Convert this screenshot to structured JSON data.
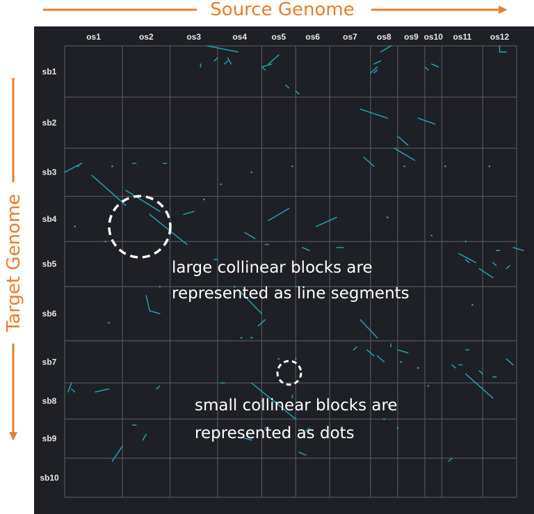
{
  "header": {
    "source_label": "Source Genome",
    "target_label": "Target Genome"
  },
  "colors": {
    "accent": "#E87D2A",
    "panel_bg": "#1f2025",
    "grid": "#54565b",
    "segment": "#1f9cb0",
    "label": "#e8e8e8",
    "annotation": "#ffffff"
  },
  "annotations": {
    "large": [
      "large collinear blocks are",
      "represented as line segments"
    ],
    "small": [
      "small collinear blocks are",
      "represented as dots"
    ]
  },
  "chart_data": {
    "type": "scatter",
    "grid": true,
    "x_axis": {
      "label": "Source Genome",
      "categories": [
        "os1",
        "os2",
        "os3",
        "os4",
        "os5",
        "os6",
        "os7",
        "os8",
        "os9",
        "os10",
        "os11",
        "os12"
      ],
      "sizes": [
        17,
        14,
        14,
        13,
        10,
        10,
        12,
        8,
        8,
        5,
        12,
        10
      ]
    },
    "y_axis": {
      "label": "Target Genome",
      "categories": [
        "sb1",
        "sb2",
        "sb3",
        "sb4",
        "sb5",
        "sb6",
        "sb7",
        "sb8",
        "sb9",
        "sb10"
      ],
      "sizes": [
        17,
        17,
        16,
        15,
        15,
        18,
        14,
        12,
        13,
        13
      ]
    },
    "segments": [
      [
        42,
        0,
        51,
        2
      ],
      [
        45,
        4,
        44,
        5
      ],
      [
        60,
        6,
        63,
        3
      ],
      [
        58,
        7,
        61,
        6
      ],
      [
        58,
        7,
        59,
        8
      ],
      [
        48,
        4,
        49,
        6
      ],
      [
        48,
        5,
        47,
        6
      ],
      [
        40,
        6,
        40,
        7
      ],
      [
        68,
        15,
        69,
        16
      ],
      [
        65,
        13,
        66,
        14
      ],
      [
        93,
        2,
        96,
        0
      ],
      [
        91,
        6,
        93,
        5
      ],
      [
        90,
        9,
        92,
        7
      ],
      [
        92,
        8,
        91,
        9
      ],
      [
        108,
        6,
        110,
        7
      ],
      [
        106,
        7,
        107,
        8
      ],
      [
        128,
        0,
        128,
        2
      ],
      [
        128,
        2,
        130,
        2
      ],
      [
        87,
        21,
        95,
        24
      ],
      [
        104,
        24,
        109,
        26
      ],
      [
        97,
        34,
        103,
        38
      ],
      [
        88,
        37,
        91,
        40
      ],
      [
        98,
        30,
        101,
        33
      ],
      [
        0,
        42,
        5,
        39
      ],
      [
        8,
        43,
        16,
        51
      ],
      [
        18,
        48,
        28,
        55
      ],
      [
        16,
        51,
        18,
        53
      ],
      [
        35,
        56,
        38,
        55
      ],
      [
        60,
        58,
        66,
        54
      ],
      [
        74,
        60,
        80,
        57
      ],
      [
        46,
        46,
        46,
        46
      ],
      [
        4,
        40,
        4,
        40
      ],
      [
        14,
        40,
        14,
        40
      ],
      [
        29,
        39,
        30,
        39
      ],
      [
        20,
        39,
        21,
        39
      ],
      [
        55,
        42,
        55,
        42
      ],
      [
        67,
        40,
        67,
        40
      ],
      [
        100,
        40,
        100,
        40
      ],
      [
        112,
        40,
        112,
        40
      ],
      [
        125,
        40,
        125,
        40
      ],
      [
        25,
        56,
        36,
        66
      ],
      [
        53,
        62,
        56,
        64
      ],
      [
        59,
        66,
        60,
        66
      ],
      [
        70,
        67,
        72,
        68
      ],
      [
        80,
        67,
        82,
        67
      ],
      [
        108,
        63,
        108,
        63
      ],
      [
        118,
        65,
        118,
        65
      ],
      [
        127,
        68,
        128,
        68
      ],
      [
        3,
        60,
        3,
        60
      ],
      [
        12,
        65,
        12,
        65
      ],
      [
        44,
        71,
        45,
        71
      ],
      [
        116,
        69,
        121,
        72
      ],
      [
        122,
        74,
        126,
        77
      ],
      [
        132,
        67,
        135,
        68
      ],
      [
        118,
        71,
        119,
        72
      ],
      [
        126,
        72,
        127,
        73
      ],
      [
        130,
        74,
        131,
        73
      ],
      [
        52,
        82,
        58,
        89
      ],
      [
        24,
        83,
        25,
        88
      ],
      [
        25,
        88,
        28,
        89
      ],
      [
        59,
        91,
        57,
        93
      ],
      [
        68,
        80,
        69,
        80
      ],
      [
        120,
        86,
        120,
        86
      ],
      [
        28,
        80,
        28,
        80
      ],
      [
        13,
        92,
        13,
        92
      ],
      [
        87,
        91,
        92,
        97
      ],
      [
        89,
        101,
        91,
        103
      ],
      [
        92,
        103,
        94,
        105
      ],
      [
        85,
        101,
        86,
        100
      ],
      [
        96,
        100,
        96,
        99
      ],
      [
        98,
        101,
        101,
        102
      ],
      [
        52,
        97,
        52,
        97
      ],
      [
        63,
        104,
        63,
        104
      ],
      [
        68,
        104,
        68,
        104
      ],
      [
        99,
        105,
        99,
        105
      ],
      [
        118,
        109,
        126,
        117
      ],
      [
        114,
        106,
        115,
        107
      ],
      [
        122,
        108,
        123,
        109
      ],
      [
        118,
        101,
        119,
        101
      ],
      [
        116,
        106,
        117,
        106
      ],
      [
        126,
        110,
        127,
        110
      ],
      [
        130,
        104,
        132,
        106
      ],
      [
        55,
        112,
        68,
        124
      ],
      [
        9,
        115,
        13,
        114
      ],
      [
        1,
        115,
        2,
        112
      ],
      [
        2,
        114,
        3,
        115
      ],
      [
        27,
        114,
        28,
        113
      ],
      [
        46,
        112,
        47,
        112
      ],
      [
        67,
        116,
        67,
        117
      ],
      [
        95,
        119,
        96,
        120
      ],
      [
        58,
        118,
        58,
        118
      ],
      [
        94,
        124,
        94,
        124
      ],
      [
        107,
        113,
        107,
        113
      ],
      [
        20,
        126,
        21,
        126
      ],
      [
        14,
        138,
        17,
        133
      ],
      [
        23,
        131,
        24,
        129
      ],
      [
        52,
        130,
        55,
        131
      ],
      [
        59,
        127,
        60,
        127
      ],
      [
        69,
        135,
        71,
        136
      ],
      [
        71,
        128,
        72,
        127
      ],
      [
        98,
        127,
        98,
        127
      ],
      [
        113,
        138,
        114,
        137
      ]
    ],
    "dots": [
      [
        55,
        97
      ],
      [
        41,
        51
      ],
      [
        95,
        57
      ],
      [
        50,
        80
      ],
      [
        104,
        107
      ]
    ]
  }
}
